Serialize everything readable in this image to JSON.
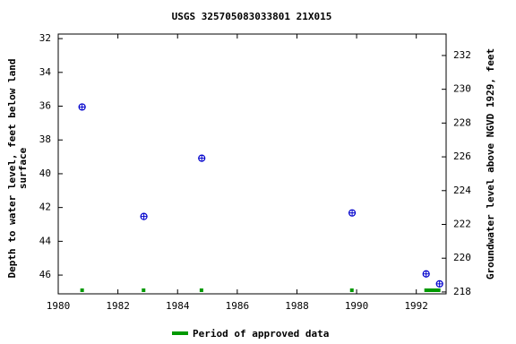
{
  "chart_data": {
    "type": "scatter",
    "title": "USGS 325705083033801 21X015",
    "ylabel": [
      "Depth to water level, feet below land",
      "surface"
    ],
    "y2label": "Groundwater level above NGVD 1929, feet",
    "x": [
      1980.8,
      1982.87,
      1984.81,
      1989.85,
      1992.33,
      1992.78
    ],
    "series": [
      {
        "name": "Depth to water level",
        "color": "#0000cc",
        "values": [
          36.05,
          42.53,
          39.08,
          42.32,
          45.93,
          46.52
        ]
      }
    ],
    "xlim": [
      1980,
      1993
    ],
    "xticks": [
      1980,
      1982,
      1984,
      1986,
      1988,
      1990,
      1992
    ],
    "ylim": [
      31.73,
      47.11
    ],
    "yticks": [
      32,
      34,
      36,
      38,
      40,
      42,
      44,
      46
    ],
    "y_inverted": true,
    "y2lim": [
      217.89,
      233.27
    ],
    "y2ticks": [
      218,
      220,
      222,
      224,
      226,
      228,
      230,
      232
    ],
    "approved": {
      "name": "Period of approved data",
      "color": "#009900",
      "periods": [
        [
          1980.74,
          1980.86
        ],
        [
          1982.8,
          1982.92
        ],
        [
          1984.74,
          1984.86
        ],
        [
          1989.78,
          1989.9
        ],
        [
          1992.27,
          1992.81
        ]
      ]
    }
  }
}
